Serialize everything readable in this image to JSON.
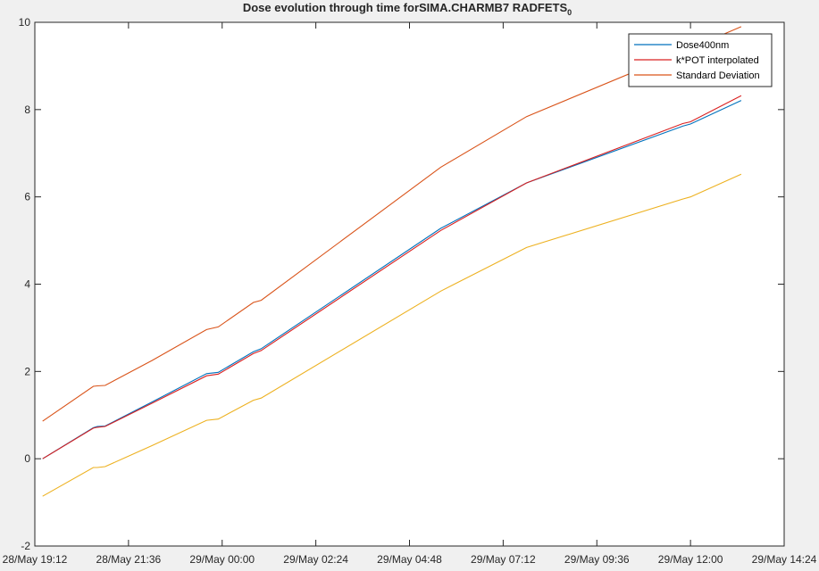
{
  "chart_data": {
    "type": "line",
    "title": "Dose evolution through time forSIMA.CHARMB7 RADFETS",
    "title_subscript": "0",
    "xlabel": "",
    "ylabel": "",
    "xlim": [
      "28/May 19:12",
      "29/May 14:24"
    ],
    "ylim": [
      -2,
      10
    ],
    "x_tick_labels": [
      "28/May 19:12",
      "28/May 21:36",
      "29/May 00:00",
      "29/May 02:24",
      "29/May 04:48",
      "29/May 07:12",
      "29/May 09:36",
      "29/May 12:00",
      "29/May 14:24"
    ],
    "y_ticks": [
      -2,
      0,
      2,
      4,
      6,
      8,
      10
    ],
    "grid": false,
    "legend_position": "top-right",
    "series": [
      {
        "name": "Dose400nm",
        "color": "#0072BD",
        "points": [
          [
            "28/May 19:24",
            0.0
          ],
          [
            "28/May 20:42",
            0.71
          ],
          [
            "28/May 20:48",
            0.74
          ],
          [
            "28/May 21:00",
            0.75
          ],
          [
            "28/May 22:12",
            1.3
          ],
          [
            "28/May 23:36",
            1.95
          ],
          [
            "28/May 23:54",
            1.98
          ],
          [
            "29/May 00:48",
            2.45
          ],
          [
            "29/May 01:00",
            2.52
          ],
          [
            "29/May 05:36",
            5.28
          ],
          [
            "29/May 07:48",
            6.32
          ],
          [
            "29/May 11:48",
            7.62
          ],
          [
            "29/May 12:00",
            7.67
          ],
          [
            "29/May 13:18",
            8.21
          ]
        ]
      },
      {
        "name": "k*POT interpolated",
        "color": "#D92020",
        "points": [
          [
            "28/May 19:24",
            0.0
          ],
          [
            "28/May 20:42",
            0.7
          ],
          [
            "28/May 20:48",
            0.72
          ],
          [
            "28/May 21:00",
            0.74
          ],
          [
            "28/May 22:12",
            1.27
          ],
          [
            "28/May 23:36",
            1.9
          ],
          [
            "28/May 23:54",
            1.94
          ],
          [
            "29/May 00:48",
            2.41
          ],
          [
            "29/May 01:00",
            2.48
          ],
          [
            "29/May 05:36",
            5.23
          ],
          [
            "29/May 07:48",
            6.32
          ],
          [
            "29/May 11:48",
            7.68
          ],
          [
            "29/May 12:00",
            7.72
          ],
          [
            "29/May 13:18",
            8.32
          ]
        ]
      },
      {
        "name": "Standard Deviation",
        "color": "#D95319",
        "points": [
          [
            "28/May 19:24",
            0.86
          ],
          [
            "28/May 20:42",
            1.66
          ],
          [
            "28/May 20:48",
            1.67
          ],
          [
            "28/May 21:00",
            1.68
          ],
          [
            "28/May 22:12",
            2.25
          ],
          [
            "28/May 23:36",
            2.96
          ],
          [
            "28/May 23:54",
            3.02
          ],
          [
            "29/May 00:48",
            3.58
          ],
          [
            "29/May 01:00",
            3.63
          ],
          [
            "29/May 05:36",
            6.68
          ],
          [
            "29/May 07:48",
            7.84
          ],
          [
            "29/May 11:48",
            9.33
          ],
          [
            "29/May 12:00",
            9.4
          ],
          [
            "29/May 13:18",
            9.9
          ]
        ]
      },
      {
        "name": "",
        "color": "#EDB120",
        "points": [
          [
            "28/May 19:24",
            -0.86
          ],
          [
            "28/May 20:42",
            -0.2
          ],
          [
            "28/May 20:48",
            -0.2
          ],
          [
            "28/May 21:00",
            -0.18
          ],
          [
            "28/May 22:12",
            0.3
          ],
          [
            "28/May 23:36",
            0.88
          ],
          [
            "28/May 23:54",
            0.91
          ],
          [
            "29/May 00:48",
            1.34
          ],
          [
            "29/May 01:00",
            1.39
          ],
          [
            "29/May 05:36",
            3.84
          ],
          [
            "29/May 07:48",
            4.84
          ],
          [
            "29/May 11:48",
            5.95
          ],
          [
            "29/May 12:00",
            6.0
          ],
          [
            "29/May 13:18",
            6.52
          ]
        ]
      }
    ]
  }
}
